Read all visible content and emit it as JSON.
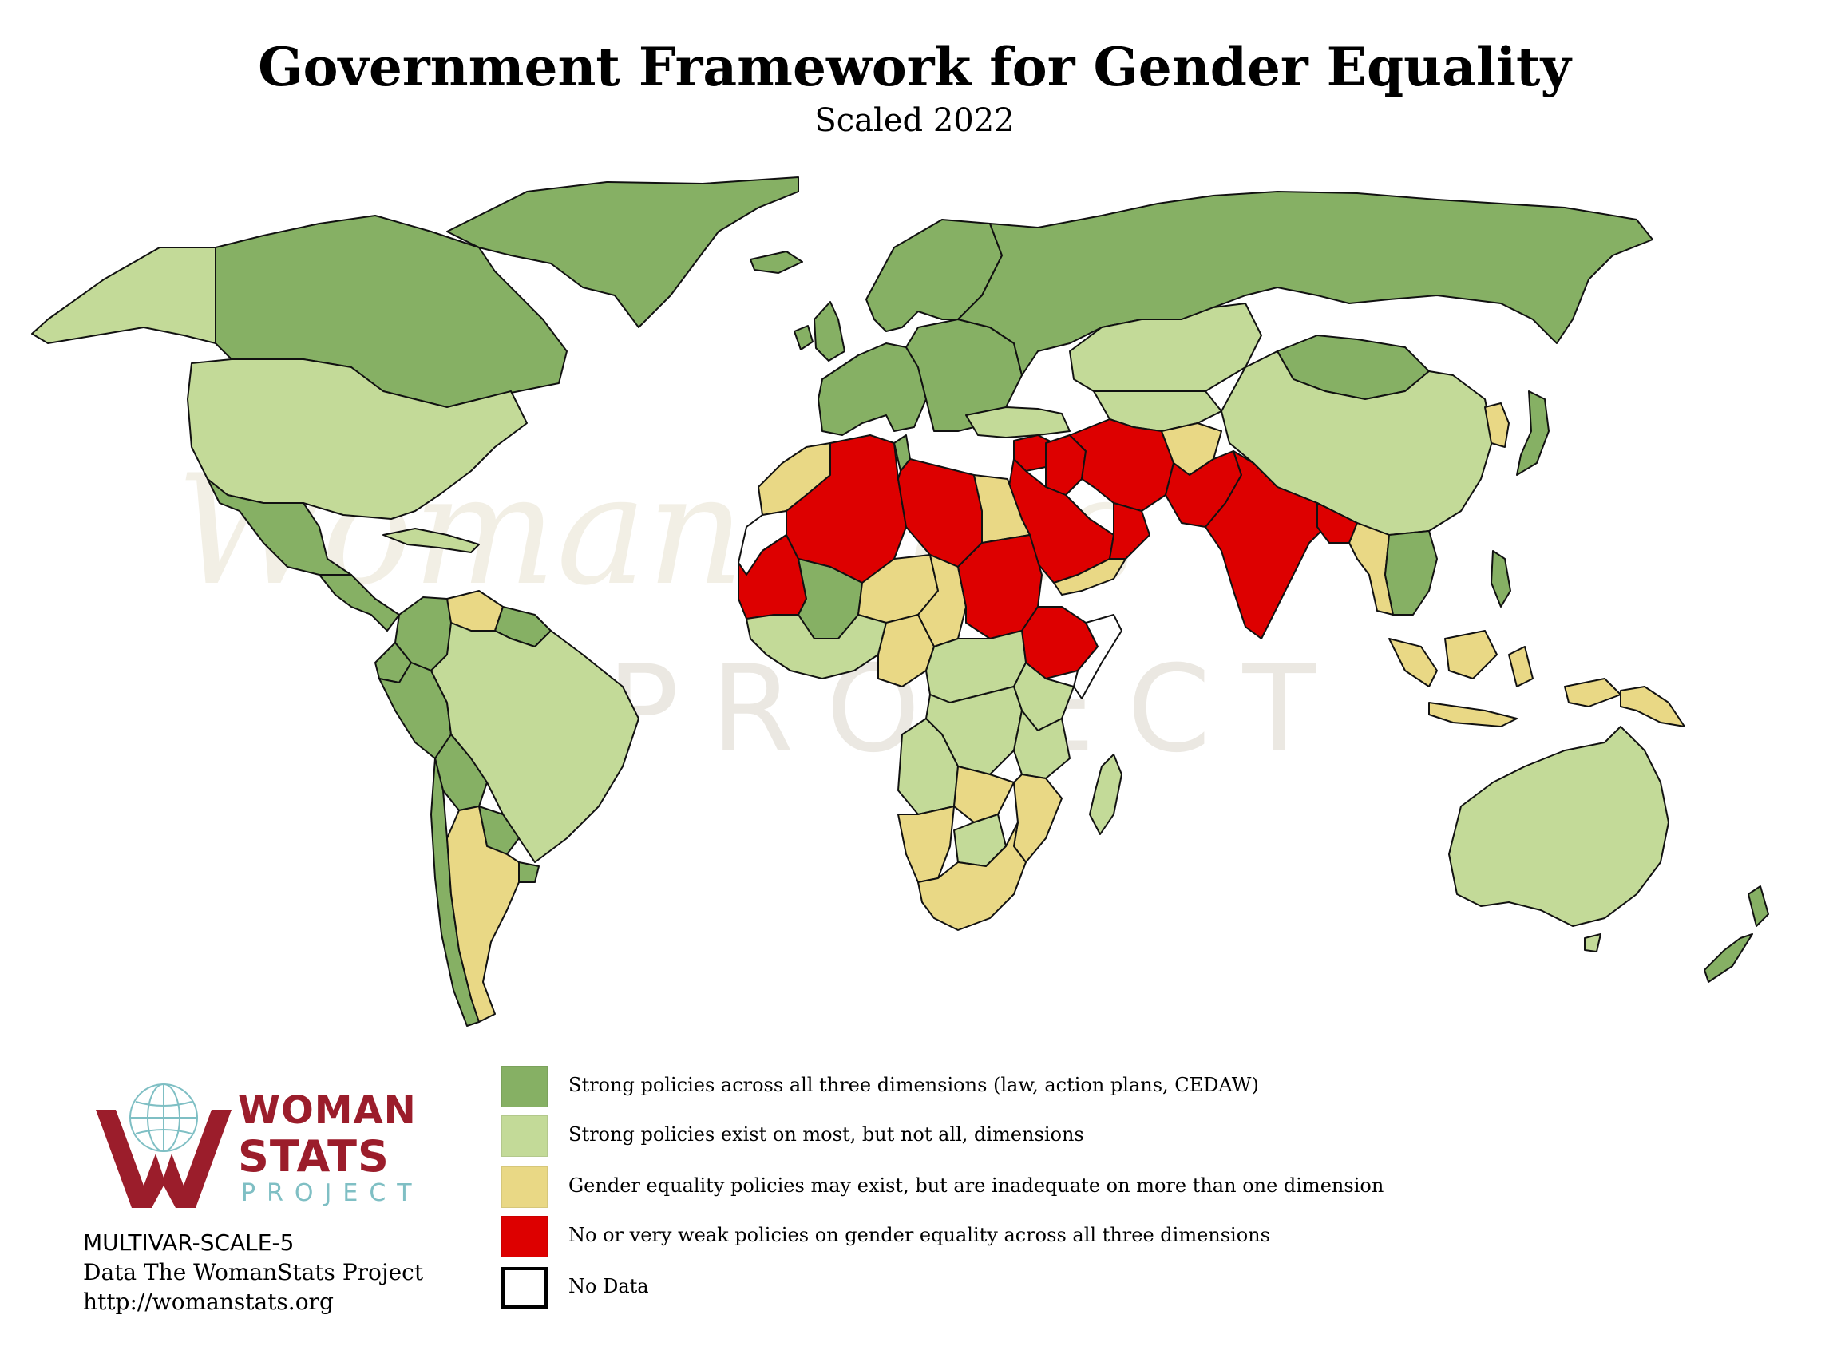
{
  "title": "Government Framework for Gender Equality",
  "subtitle": "Scaled 2022",
  "watermark": {
    "line1": "WomanStats",
    "line2": "PROJECT"
  },
  "legend": {
    "items": [
      {
        "label": "Strong policies across all three dimensions (law, action plans, CEDAW)",
        "color": "#86b064"
      },
      {
        "label": "Strong policies exist on most, but not all, dimensions",
        "color": "#c3da98"
      },
      {
        "label": "Gender equality policies may exist, but are inadequate on more than one dimension",
        "color": "#e9d885"
      },
      {
        "label": "No or very weak policies on gender equality across all three dimensions",
        "color": "#dd0000"
      },
      {
        "label": "No Data",
        "color": "#ffffff"
      }
    ]
  },
  "logo": {
    "word1": "WOMAN",
    "word2": "STATS",
    "word3": "PROJECT",
    "brand_color": "#9b1d2b",
    "accent_color": "#7fbfc4"
  },
  "credits": {
    "code": "MULTIVAR-SCALE-5",
    "source": "Data The WomanStats Project",
    "url": "http://womanstats.org"
  },
  "map": {
    "regions": [
      {
        "name": "Canada",
        "category": 1
      },
      {
        "name": "Alaska",
        "category": 2
      },
      {
        "name": "Greenland",
        "category": 1
      },
      {
        "name": "United States",
        "category": 2
      },
      {
        "name": "Mexico",
        "category": 1
      },
      {
        "name": "Central America",
        "category": 1
      },
      {
        "name": "Caribbean",
        "category": 2
      },
      {
        "name": "Colombia",
        "category": 1
      },
      {
        "name": "Venezuela",
        "category": 3
      },
      {
        "name": "Guianas",
        "category": 1
      },
      {
        "name": "Peru",
        "category": 1
      },
      {
        "name": "Ecuador",
        "category": 1
      },
      {
        "name": "Brazil",
        "category": 2
      },
      {
        "name": "Bolivia",
        "category": 1
      },
      {
        "name": "Paraguay",
        "category": 1
      },
      {
        "name": "Uruguay",
        "category": 1
      },
      {
        "name": "Chile",
        "category": 1
      },
      {
        "name": "Argentina",
        "category": 3
      },
      {
        "name": "Iceland",
        "category": 1
      },
      {
        "name": "United Kingdom",
        "category": 1
      },
      {
        "name": "Ireland",
        "category": 1
      },
      {
        "name": "Scandinavia",
        "category": 1
      },
      {
        "name": "Western Europe",
        "category": 1
      },
      {
        "name": "Eastern Europe",
        "category": 1
      },
      {
        "name": "Russia",
        "category": 1
      },
      {
        "name": "Turkey",
        "category": 2
      },
      {
        "name": "Kazakhstan",
        "category": 2
      },
      {
        "name": "Central Asia",
        "category": 2
      },
      {
        "name": "Mongolia",
        "category": 1
      },
      {
        "name": "China",
        "category": 2
      },
      {
        "name": "Korea",
        "category": 3
      },
      {
        "name": "Japan",
        "category": 1
      },
      {
        "name": "Afghanistan",
        "category": 3
      },
      {
        "name": "Iran",
        "category": 4
      },
      {
        "name": "Iraq",
        "category": 4
      },
      {
        "name": "Syria",
        "category": 4
      },
      {
        "name": "Saudi Arabia",
        "category": 4
      },
      {
        "name": "Yemen",
        "category": 3
      },
      {
        "name": "Oman",
        "category": 4
      },
      {
        "name": "Pakistan",
        "category": 4
      },
      {
        "name": "India",
        "category": 4
      },
      {
        "name": "Bangladesh",
        "category": 4
      },
      {
        "name": "Myanmar",
        "category": 3
      },
      {
        "name": "Southeast Asia",
        "category": 1
      },
      {
        "name": "Philippines",
        "category": 1
      },
      {
        "name": "Indonesia",
        "category": 3
      },
      {
        "name": "Papua New Guinea",
        "category": 3
      },
      {
        "name": "Australia",
        "category": 2
      },
      {
        "name": "New Zealand",
        "category": 1
      },
      {
        "name": "Morocco",
        "category": 3
      },
      {
        "name": "Western Sahara",
        "category": 0
      },
      {
        "name": "Mauritania",
        "category": 4
      },
      {
        "name": "Algeria",
        "category": 4
      },
      {
        "name": "Tunisia",
        "category": 1
      },
      {
        "name": "Libya",
        "category": 4
      },
      {
        "name": "Egypt",
        "category": 3
      },
      {
        "name": "Mali",
        "category": 1
      },
      {
        "name": "Niger",
        "category": 3
      },
      {
        "name": "Chad",
        "category": 3
      },
      {
        "name": "Sudan",
        "category": 4
      },
      {
        "name": "Ethiopia",
        "category": 4
      },
      {
        "name": "Somalia",
        "category": 0
      },
      {
        "name": "West Africa",
        "category": 2
      },
      {
        "name": "Nigeria",
        "category": 3
      },
      {
        "name": "Central Africa",
        "category": 2
      },
      {
        "name": "Kenya",
        "category": 2
      },
      {
        "name": "Tanzania",
        "category": 2
      },
      {
        "name": "DR Congo",
        "category": 2
      },
      {
        "name": "Angola",
        "category": 2
      },
      {
        "name": "Zambia",
        "category": 3
      },
      {
        "name": "Mozambique",
        "category": 3
      },
      {
        "name": "Namibia",
        "category": 3
      },
      {
        "name": "Botswana",
        "category": 2
      },
      {
        "name": "South Africa",
        "category": 3
      },
      {
        "name": "Madagascar",
        "category": 2
      }
    ]
  }
}
